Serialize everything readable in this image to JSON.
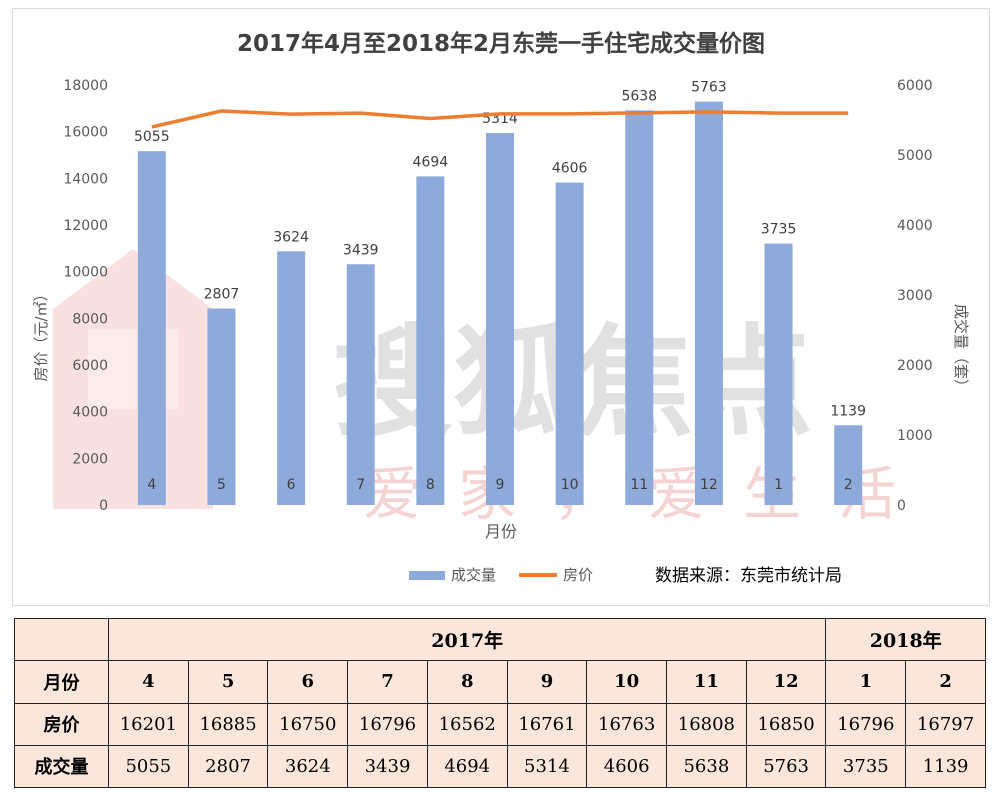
{
  "chart_data": {
    "type": "bar+line",
    "title": "2017年4月至2018年2月东莞一手住宅成交量价图",
    "categories": [
      "4",
      "5",
      "6",
      "7",
      "8",
      "9",
      "10",
      "11",
      "12",
      "1",
      "2"
    ],
    "series": [
      {
        "name": "成交量",
        "type": "bar",
        "axis": "right",
        "color": "#8eaadb",
        "values": [
          5055,
          2807,
          3624,
          3439,
          4694,
          5314,
          4606,
          5638,
          5763,
          3735,
          1139
        ]
      },
      {
        "name": "房价",
        "type": "line",
        "axis": "left",
        "color": "#ed7d31",
        "values": [
          16201,
          16885,
          16750,
          16796,
          16562,
          16761,
          16763,
          16808,
          16850,
          16796,
          16797
        ]
      }
    ],
    "xlabel": "月份",
    "ylabel_left": "房价（元/㎡）",
    "ylabel_right": "成交量（套）",
    "ylim_left": [
      0,
      18000
    ],
    "ylim_right": [
      0,
      6000
    ],
    "yticks_left": [
      0,
      2000,
      4000,
      6000,
      8000,
      10000,
      12000,
      14000,
      16000,
      18000
    ],
    "yticks_right": [
      0,
      1000,
      2000,
      3000,
      4000,
      5000,
      6000
    ],
    "grid": false,
    "legend_position": "bottom",
    "source_note": "数据来源：东莞市统计局"
  },
  "watermark": {
    "brand_text": "搜狐焦点",
    "slogan_chars": [
      "爱",
      "家",
      "，",
      "爱",
      "生",
      "活"
    ]
  },
  "table": {
    "year_2017": "2017年",
    "year_2018": "2018年",
    "row_labels": {
      "month": "月份",
      "price": "房价",
      "volume": "成交量"
    },
    "months": [
      "4",
      "5",
      "6",
      "7",
      "8",
      "9",
      "10",
      "11",
      "12",
      "1",
      "2"
    ],
    "prices": [
      "16201",
      "16885",
      "16750",
      "16796",
      "16562",
      "16761",
      "16763",
      "16808",
      "16850",
      "16796",
      "16797"
    ],
    "volumes": [
      "5055",
      "2807",
      "3624",
      "3439",
      "4694",
      "5314",
      "4606",
      "5638",
      "5763",
      "3735",
      "1139"
    ]
  }
}
